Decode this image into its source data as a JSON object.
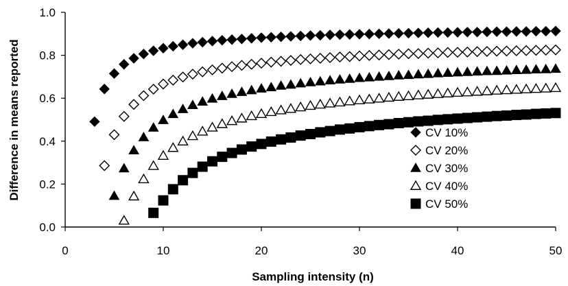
{
  "chart_data": {
    "type": "scatter",
    "xlabel": "Sampling intensity (n)",
    "ylabel": "Difference in means reported",
    "xlim": [
      0,
      50
    ],
    "ylim": [
      0.0,
      1.0
    ],
    "x_ticks": [
      "0",
      "10",
      "20",
      "30",
      "40",
      "50"
    ],
    "y_ticks": [
      "0.0",
      "0.2",
      "0.4",
      "0.6",
      "0.8",
      "1.0"
    ],
    "grid": false,
    "legend_position": "right-center",
    "x": [
      3,
      4,
      5,
      6,
      7,
      8,
      9,
      10,
      11,
      12,
      13,
      14,
      15,
      16,
      17,
      18,
      19,
      20,
      21,
      22,
      23,
      24,
      25,
      26,
      27,
      28,
      29,
      30,
      31,
      32,
      33,
      34,
      35,
      36,
      37,
      38,
      39,
      40,
      41,
      42,
      43,
      44,
      45,
      46,
      47,
      48,
      49,
      50
    ],
    "series": [
      {
        "name": "CV 10%",
        "marker": "filled-diamond",
        "values": [
          0.491,
          0.643,
          0.715,
          0.758,
          0.786,
          0.806,
          0.821,
          0.833,
          0.842,
          0.849,
          0.856,
          0.861,
          0.866,
          0.87,
          0.873,
          0.876,
          0.879,
          0.882,
          0.884,
          0.886,
          0.888,
          0.89,
          0.892,
          0.893,
          0.895,
          0.896,
          0.897,
          0.898,
          0.899,
          0.9,
          0.901,
          0.902,
          0.903,
          0.904,
          0.905,
          0.906,
          0.906,
          0.907,
          0.908,
          0.908,
          0.909,
          0.91,
          0.91,
          0.911,
          0.911,
          0.912,
          0.912,
          0.913
        ]
      },
      {
        "name": "CV 20%",
        "marker": "open-diamond",
        "values": [
          null,
          0.286,
          0.43,
          0.515,
          0.571,
          0.612,
          0.642,
          0.666,
          0.684,
          0.699,
          0.712,
          0.723,
          0.732,
          0.74,
          0.747,
          0.753,
          0.758,
          0.763,
          0.768,
          0.772,
          0.776,
          0.78,
          0.783,
          0.786,
          0.789,
          0.792,
          0.794,
          0.797,
          0.799,
          0.801,
          0.803,
          0.805,
          0.807,
          0.808,
          0.81,
          0.811,
          0.813,
          0.814,
          0.815,
          0.817,
          0.818,
          0.819,
          0.82,
          0.821,
          0.822,
          0.823,
          0.824,
          0.825
        ]
      },
      {
        "name": "CV 30%",
        "marker": "filled-triangle",
        "values": [
          null,
          null,
          0.145,
          0.273,
          0.357,
          0.418,
          0.463,
          0.498,
          0.526,
          0.549,
          0.568,
          0.584,
          0.598,
          0.61,
          0.62,
          0.629,
          0.637,
          0.645,
          0.651,
          0.658,
          0.663,
          0.669,
          0.674,
          0.678,
          0.683,
          0.687,
          0.69,
          0.694,
          0.697,
          0.7,
          0.703,
          0.706,
          0.708,
          0.711,
          0.713,
          0.716,
          0.718,
          0.72,
          0.722,
          0.724,
          0.726,
          0.727,
          0.729,
          0.731,
          0.732,
          0.734,
          0.735,
          0.737
        ]
      },
      {
        "name": "CV 40%",
        "marker": "open-triangle",
        "values": [
          null,
          null,
          null,
          0.03,
          0.143,
          0.223,
          0.285,
          0.332,
          0.369,
          0.399,
          0.424,
          0.445,
          0.464,
          0.48,
          0.494,
          0.506,
          0.517,
          0.527,
          0.536,
          0.544,
          0.551,
          0.558,
          0.565,
          0.571,
          0.576,
          0.581,
          0.586,
          0.591,
          0.595,
          0.599,
          0.603,
          0.607,
          0.61,
          0.614,
          0.617,
          0.62,
          0.623,
          0.626,
          0.628,
          0.631,
          0.633,
          0.636,
          0.638,
          0.64,
          0.642,
          0.644,
          0.646,
          0.648
        ]
      },
      {
        "name": "CV 50%",
        "marker": "filled-square",
        "values": [
          null,
          null,
          null,
          null,
          null,
          null,
          0.066,
          0.124,
          0.176,
          0.218,
          0.252,
          0.281,
          0.306,
          0.327,
          0.345,
          0.361,
          0.375,
          0.387,
          0.398,
          0.408,
          0.417,
          0.426,
          0.433,
          0.441,
          0.447,
          0.454,
          0.459,
          0.465,
          0.47,
          0.475,
          0.479,
          0.484,
          0.488,
          0.492,
          0.495,
          0.499,
          0.502,
          0.505,
          0.508,
          0.511,
          0.514,
          0.517,
          0.519,
          0.522,
          0.524,
          0.527,
          0.529,
          0.531
        ]
      }
    ]
  }
}
